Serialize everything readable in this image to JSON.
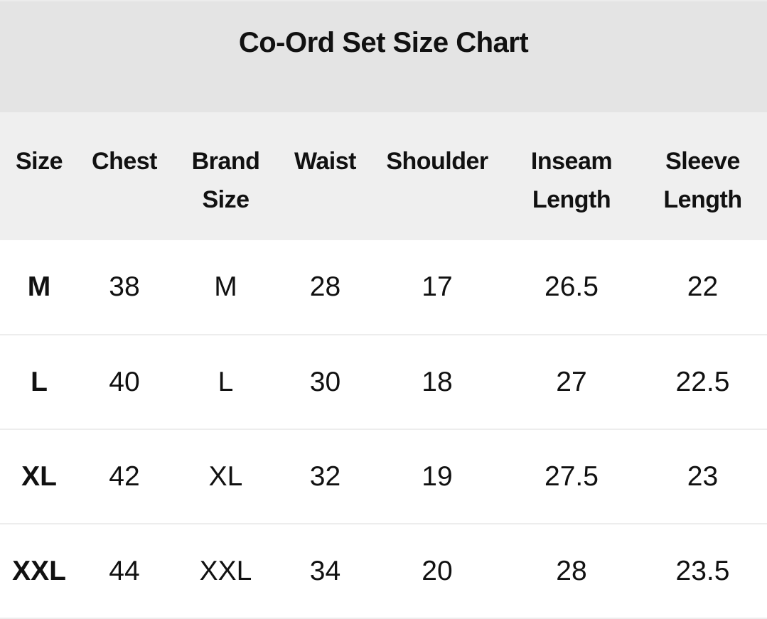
{
  "title": "Co-Ord Set Size Chart",
  "columns": [
    "Size",
    "Chest",
    "Brand Size",
    "Waist",
    "Shoulder",
    "Inseam Length",
    "Sleeve Length"
  ],
  "rows": [
    [
      "M",
      "38",
      "M",
      "28",
      "17",
      "26.5",
      "22"
    ],
    [
      "L",
      "40",
      "L",
      "30",
      "18",
      "27",
      "22.5"
    ],
    [
      "XL",
      "42",
      "XL",
      "32",
      "19",
      "27.5",
      "23"
    ],
    [
      "XXL",
      "44",
      "XXL",
      "34",
      "20",
      "28",
      "23.5"
    ]
  ],
  "colors": {
    "title_background": "#e4e4e4",
    "header_background": "#efefef",
    "row_divider": "#ededed"
  }
}
